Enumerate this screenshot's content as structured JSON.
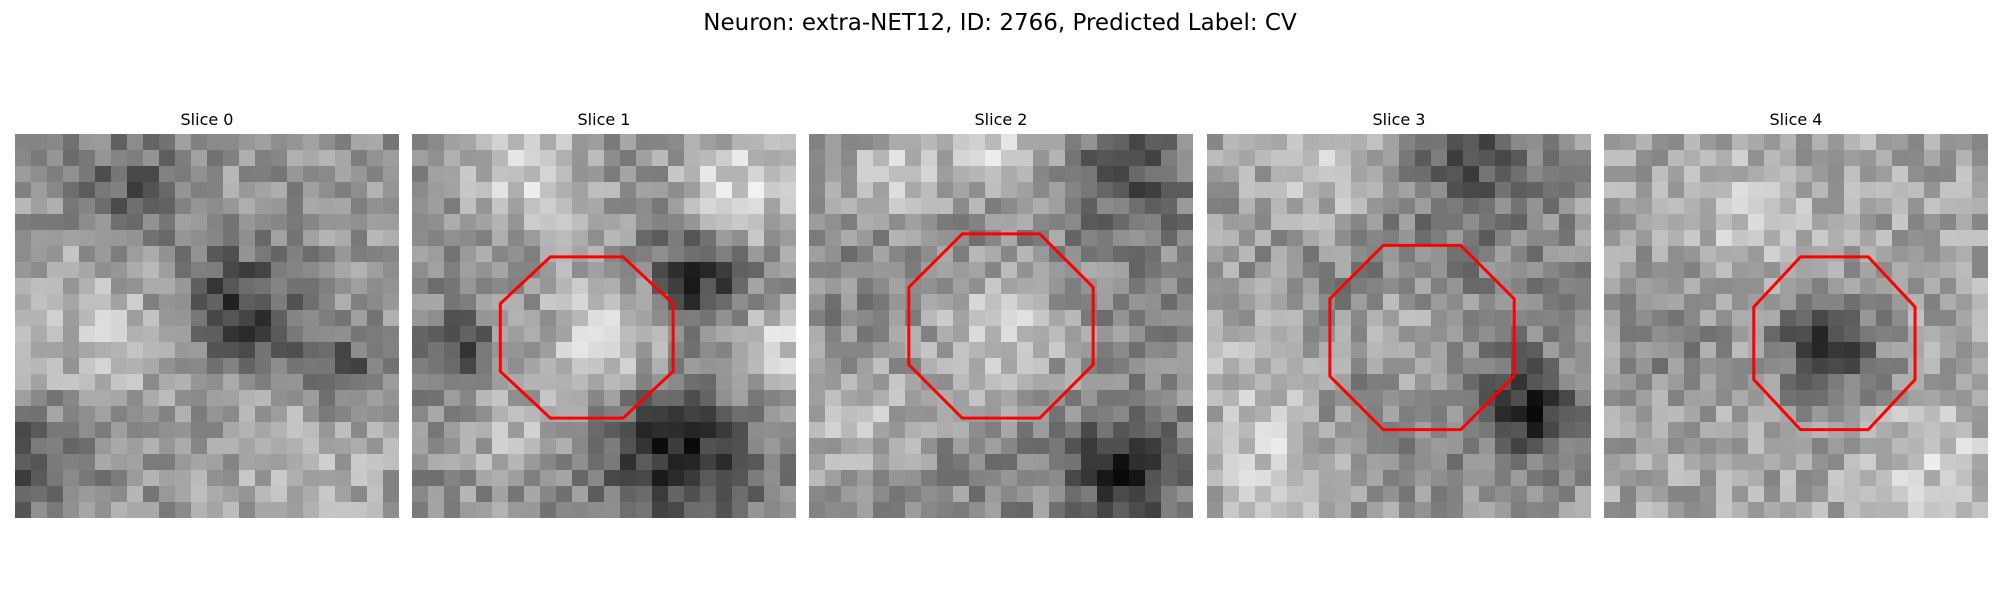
{
  "figure": {
    "title": "Neuron: extra-NET12, ID: 2766, Predicted Label: CV"
  },
  "panels": [
    {
      "title": "Slice 0",
      "has_outline": false,
      "outline_color": "#ff0000"
    },
    {
      "title": "Slice 1",
      "has_outline": true,
      "outline_color": "#ff0000"
    },
    {
      "title": "Slice 2",
      "has_outline": true,
      "outline_color": "#ff0000"
    },
    {
      "title": "Slice 3",
      "has_outline": true,
      "outline_color": "#ff0000"
    },
    {
      "title": "Slice 4",
      "has_outline": true,
      "outline_color": "#ff0000"
    }
  ]
}
